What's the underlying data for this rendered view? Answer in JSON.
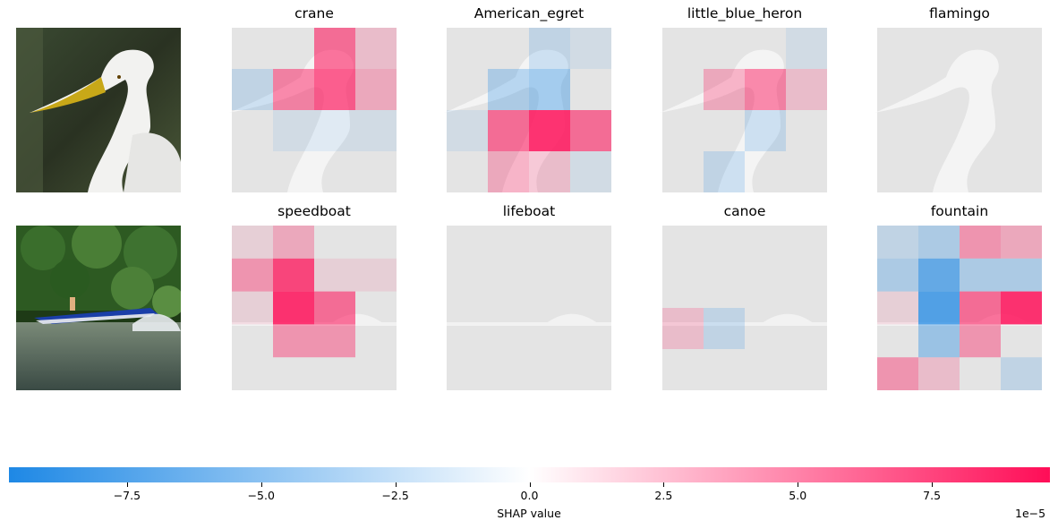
{
  "chart_data": {
    "type": "heatmap",
    "colorbar": {
      "label": "SHAP value",
      "offset_text": "1e−5",
      "ticks": [
        "−7.5",
        "−5.0",
        "−2.5",
        "0.0",
        "2.5",
        "5.0",
        "7.5"
      ],
      "tick_values": [
        -7.5,
        -5.0,
        -2.5,
        0.0,
        2.5,
        5.0,
        7.5
      ],
      "range": [
        -9.7,
        9.7
      ],
      "negative_color": "#1e88e5",
      "positive_color": "#ff0d57"
    },
    "rows": [
      {
        "image": "egret",
        "panels": [
          {
            "title": "crane",
            "values": [
              [
                0,
                0,
                6,
                2
              ],
              [
                -2,
                5,
                7,
                3
              ],
              [
                0,
                -1,
                -1,
                -1
              ],
              [
                0,
                0,
                0,
                0
              ]
            ]
          },
          {
            "title": "American_egret",
            "values": [
              [
                0,
                0,
                -2,
                -1
              ],
              [
                0,
                -3,
                -4,
                0
              ],
              [
                -1,
                6,
                9,
                6
              ],
              [
                0,
                3,
                2,
                -1
              ]
            ]
          },
          {
            "title": "little_blue_heron",
            "values": [
              [
                0,
                0,
                0,
                -1
              ],
              [
                0,
                3,
                5,
                2
              ],
              [
                0,
                0,
                -2,
                0
              ],
              [
                0,
                -2,
                0,
                0
              ]
            ]
          },
          {
            "title": "flamingo",
            "values": [
              [
                0,
                0,
                0,
                0
              ],
              [
                0,
                0,
                0,
                0
              ],
              [
                0,
                0,
                0,
                0
              ],
              [
                0,
                0,
                0,
                0
              ]
            ]
          }
        ]
      },
      {
        "image": "speedboat",
        "panels": [
          {
            "title": "speedboat",
            "values": [
              [
                1,
                3,
                0,
                0
              ],
              [
                4,
                8,
                1,
                1
              ],
              [
                1,
                9,
                6,
                0
              ],
              [
                0,
                4,
                4,
                0
              ],
              [
                0,
                0,
                0,
                0
              ]
            ]
          },
          {
            "title": "lifeboat",
            "values": [
              [
                0,
                0,
                0,
                0
              ],
              [
                0,
                0,
                0,
                0
              ],
              [
                0,
                0,
                0,
                0
              ],
              [
                0,
                0,
                0,
                0
              ]
            ]
          },
          {
            "title": "canoe",
            "values": [
              [
                0,
                0,
                0,
                0
              ],
              [
                0,
                0,
                0,
                0
              ],
              [
                2,
                -2,
                0,
                0
              ],
              [
                0,
                0,
                0,
                0
              ]
            ]
          },
          {
            "title": "fountain",
            "values": [
              [
                -2,
                -3,
                4,
                3
              ],
              [
                -3,
                -7,
                -3,
                -3
              ],
              [
                1,
                -8,
                6,
                9
              ],
              [
                0,
                -4,
                4,
                0
              ],
              [
                4,
                2,
                0,
                -2
              ]
            ]
          }
        ]
      }
    ]
  }
}
